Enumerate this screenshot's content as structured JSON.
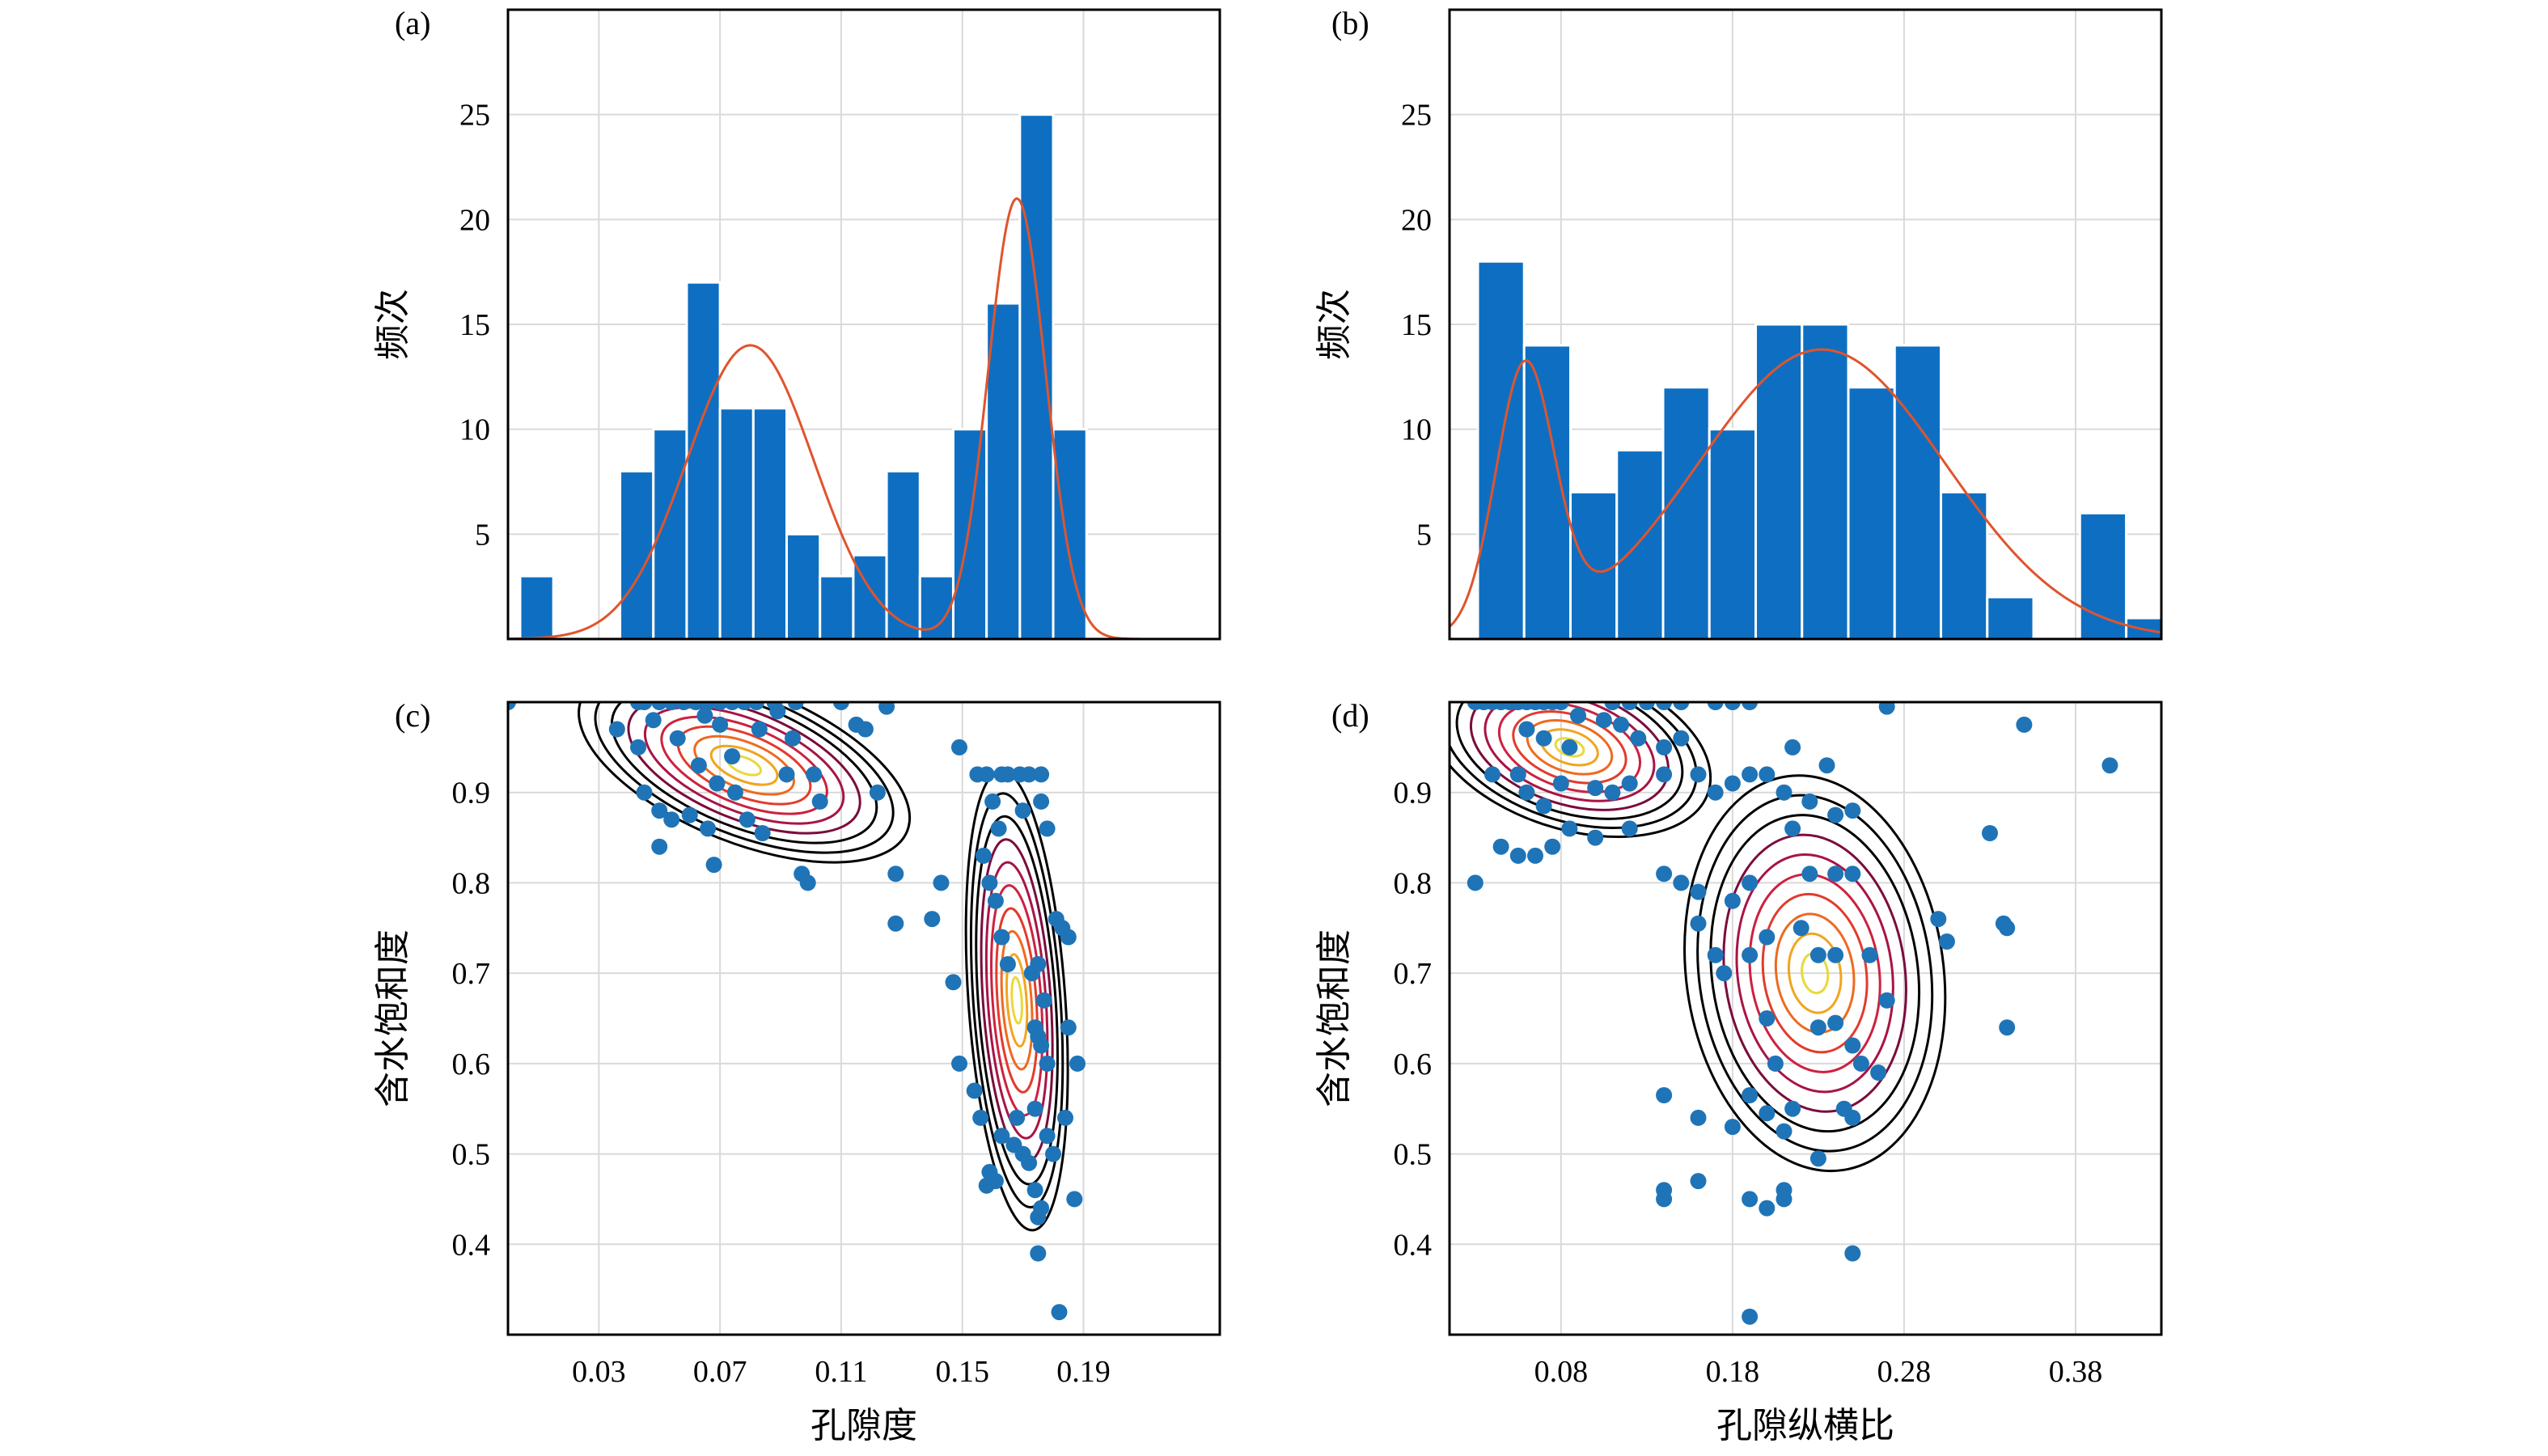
{
  "chart_data": [
    {
      "panel": "(a)",
      "type": "bar",
      "xlabel": "",
      "ylabel": "频次",
      "xlim": [
        0,
        0.235
      ],
      "ylim": [
        0,
        30
      ],
      "xticks": [
        "0.03",
        "0.07",
        "0.11",
        "0.15",
        "0.19"
      ],
      "yticks": [
        "5",
        "10",
        "15",
        "20",
        "25"
      ],
      "bin_width": 0.011,
      "bins": [
        {
          "x": 0.0095,
          "value": 3
        },
        {
          "x": 0.0425,
          "value": 8
        },
        {
          "x": 0.0535,
          "value": 10
        },
        {
          "x": 0.0645,
          "value": 17
        },
        {
          "x": 0.0755,
          "value": 11
        },
        {
          "x": 0.0865,
          "value": 11
        },
        {
          "x": 0.0975,
          "value": 5
        },
        {
          "x": 0.1085,
          "value": 3
        },
        {
          "x": 0.1195,
          "value": 4
        },
        {
          "x": 0.1305,
          "value": 8
        },
        {
          "x": 0.1415,
          "value": 3
        },
        {
          "x": 0.1525,
          "value": 10
        },
        {
          "x": 0.1635,
          "value": 16
        },
        {
          "x": 0.1745,
          "value": 25
        },
        {
          "x": 0.1855,
          "value": 10
        }
      ],
      "fit_curve": {
        "type": "gaussian-mixture",
        "components": [
          {
            "weight": 14.0,
            "mean": 0.08,
            "sd": 0.021
          },
          {
            "weight": 21.0,
            "mean": 0.168,
            "sd": 0.0095
          }
        ]
      }
    },
    {
      "panel": "(b)",
      "type": "bar",
      "xlabel": "",
      "ylabel": "频次",
      "xlim": [
        0.015,
        0.43
      ],
      "ylim": [
        0,
        30
      ],
      "xticks": [
        "0.08",
        "0.18",
        "0.28",
        "0.38"
      ],
      "yticks": [
        "5",
        "10",
        "15",
        "20",
        "25"
      ],
      "bin_width": 0.027,
      "bins": [
        {
          "x": 0.045,
          "value": 18
        },
        {
          "x": 0.072,
          "value": 14
        },
        {
          "x": 0.099,
          "value": 7
        },
        {
          "x": 0.126,
          "value": 9
        },
        {
          "x": 0.153,
          "value": 12
        },
        {
          "x": 0.18,
          "value": 10
        },
        {
          "x": 0.207,
          "value": 15
        },
        {
          "x": 0.234,
          "value": 15
        },
        {
          "x": 0.261,
          "value": 12
        },
        {
          "x": 0.288,
          "value": 14
        },
        {
          "x": 0.315,
          "value": 7
        },
        {
          "x": 0.342,
          "value": 2
        },
        {
          "x": 0.396,
          "value": 6
        },
        {
          "x": 0.423,
          "value": 1
        }
      ],
      "fit_curve": {
        "type": "gaussian-mixture",
        "components": [
          {
            "weight": 12.5,
            "mean": 0.059,
            "sd": 0.017
          },
          {
            "weight": 13.8,
            "mean": 0.232,
            "sd": 0.072
          }
        ]
      }
    },
    {
      "panel": "(c)",
      "type": "scatter",
      "xlabel": "孔隙度",
      "ylabel": "含水饱和度",
      "xlim": [
        0,
        0.235
      ],
      "ylim": [
        0.3,
        1.0
      ],
      "xticks": [
        "0.03",
        "0.07",
        "0.11",
        "0.15",
        "0.19"
      ],
      "yticks": [
        "0.4",
        "0.5",
        "0.6",
        "0.7",
        "0.8",
        "0.9"
      ],
      "contours": {
        "centers": [
          [
            0.078,
            0.93
          ],
          [
            0.168,
            0.67
          ]
        ],
        "levels": 10
      },
      "points": [
        [
          0.0,
          1.0
        ],
        [
          0.043,
          1.0
        ],
        [
          0.045,
          1.0
        ],
        [
          0.05,
          1.0
        ],
        [
          0.054,
          1.0
        ],
        [
          0.058,
          1.0
        ],
        [
          0.062,
          1.0
        ],
        [
          0.066,
          1.0
        ],
        [
          0.07,
          1.0
        ],
        [
          0.074,
          1.0
        ],
        [
          0.078,
          1.0
        ],
        [
          0.082,
          1.0
        ],
        [
          0.088,
          1.0
        ],
        [
          0.095,
          1.0
        ],
        [
          0.11,
          1.0
        ],
        [
          0.125,
          0.995
        ],
        [
          0.036,
          0.97
        ],
        [
          0.043,
          0.95
        ],
        [
          0.048,
          0.98
        ],
        [
          0.056,
          0.96
        ],
        [
          0.065,
          0.985
        ],
        [
          0.07,
          0.975
        ],
        [
          0.074,
          0.94
        ],
        [
          0.083,
          0.97
        ],
        [
          0.089,
          0.99
        ],
        [
          0.094,
          0.96
        ],
        [
          0.115,
          0.975
        ],
        [
          0.118,
          0.97
        ],
        [
          0.045,
          0.9
        ],
        [
          0.05,
          0.88
        ],
        [
          0.054,
          0.87
        ],
        [
          0.06,
          0.875
        ],
        [
          0.063,
          0.93
        ],
        [
          0.066,
          0.86
        ],
        [
          0.069,
          0.91
        ],
        [
          0.075,
          0.9
        ],
        [
          0.079,
          0.87
        ],
        [
          0.084,
          0.855
        ],
        [
          0.092,
          0.92
        ],
        [
          0.101,
          0.92
        ],
        [
          0.103,
          0.89
        ],
        [
          0.05,
          0.84
        ],
        [
          0.068,
          0.82
        ],
        [
          0.097,
          0.81
        ],
        [
          0.099,
          0.8
        ],
        [
          0.122,
          0.9
        ],
        [
          0.128,
          0.81
        ],
        [
          0.128,
          0.755
        ],
        [
          0.14,
          0.76
        ],
        [
          0.143,
          0.8
        ],
        [
          0.147,
          0.69
        ],
        [
          0.149,
          0.6
        ],
        [
          0.149,
          0.95
        ],
        [
          0.155,
          0.92
        ],
        [
          0.158,
          0.92
        ],
        [
          0.163,
          0.92
        ],
        [
          0.165,
          0.92
        ],
        [
          0.169,
          0.92
        ],
        [
          0.172,
          0.92
        ],
        [
          0.176,
          0.92
        ],
        [
          0.16,
          0.89
        ],
        [
          0.162,
          0.86
        ],
        [
          0.17,
          0.88
        ],
        [
          0.176,
          0.89
        ],
        [
          0.178,
          0.86
        ],
        [
          0.183,
          0.75
        ],
        [
          0.181,
          0.76
        ],
        [
          0.185,
          0.74
        ],
        [
          0.157,
          0.83
        ],
        [
          0.159,
          0.8
        ],
        [
          0.161,
          0.78
        ],
        [
          0.163,
          0.74
        ],
        [
          0.165,
          0.71
        ],
        [
          0.173,
          0.7
        ],
        [
          0.175,
          0.71
        ],
        [
          0.177,
          0.67
        ],
        [
          0.174,
          0.64
        ],
        [
          0.175,
          0.63
        ],
        [
          0.176,
          0.62
        ],
        [
          0.178,
          0.6
        ],
        [
          0.185,
          0.64
        ],
        [
          0.188,
          0.6
        ],
        [
          0.154,
          0.57
        ],
        [
          0.156,
          0.54
        ],
        [
          0.159,
          0.48
        ],
        [
          0.161,
          0.47
        ],
        [
          0.163,
          0.52
        ],
        [
          0.167,
          0.51
        ],
        [
          0.168,
          0.54
        ],
        [
          0.17,
          0.5
        ],
        [
          0.172,
          0.49
        ],
        [
          0.174,
          0.55
        ],
        [
          0.178,
          0.52
        ],
        [
          0.18,
          0.5
        ],
        [
          0.184,
          0.54
        ],
        [
          0.187,
          0.45
        ],
        [
          0.174,
          0.46
        ],
        [
          0.175,
          0.43
        ],
        [
          0.176,
          0.44
        ],
        [
          0.175,
          0.39
        ],
        [
          0.182,
          0.325
        ],
        [
          0.158,
          0.465
        ]
      ]
    },
    {
      "panel": "(d)",
      "type": "scatter",
      "xlabel": "孔隙纵横比",
      "ylabel": "含水饱和度",
      "xlim": [
        0.015,
        0.43
      ],
      "ylim": [
        0.3,
        1.0
      ],
      "xticks": [
        "0.08",
        "0.18",
        "0.28",
        "0.38"
      ],
      "yticks": [
        "0.4",
        "0.5",
        "0.6",
        "0.7",
        "0.8",
        "0.9"
      ],
      "contours": {
        "centers": [
          [
            0.085,
            0.95
          ],
          [
            0.235,
            0.71
          ]
        ],
        "levels": 10
      },
      "points": [
        [
          0.03,
          1.0
        ],
        [
          0.035,
          1.0
        ],
        [
          0.04,
          1.0
        ],
        [
          0.045,
          1.0
        ],
        [
          0.05,
          1.0
        ],
        [
          0.055,
          1.0
        ],
        [
          0.06,
          1.0
        ],
        [
          0.065,
          1.0
        ],
        [
          0.07,
          1.0
        ],
        [
          0.075,
          1.0
        ],
        [
          0.08,
          1.0
        ],
        [
          0.11,
          1.0
        ],
        [
          0.12,
          1.0
        ],
        [
          0.13,
          1.0
        ],
        [
          0.14,
          1.0
        ],
        [
          0.15,
          1.0
        ],
        [
          0.17,
          1.0
        ],
        [
          0.18,
          1.0
        ],
        [
          0.19,
          1.0
        ],
        [
          0.06,
          0.97
        ],
        [
          0.07,
          0.96
        ],
        [
          0.085,
          0.95
        ],
        [
          0.09,
          0.985
        ],
        [
          0.105,
          0.98
        ],
        [
          0.115,
          0.975
        ],
        [
          0.125,
          0.96
        ],
        [
          0.14,
          0.95
        ],
        [
          0.15,
          0.96
        ],
        [
          0.215,
          0.95
        ],
        [
          0.235,
          0.93
        ],
        [
          0.27,
          0.995
        ],
        [
          0.04,
          0.92
        ],
        [
          0.055,
          0.92
        ],
        [
          0.06,
          0.9
        ],
        [
          0.07,
          0.885
        ],
        [
          0.08,
          0.91
        ],
        [
          0.1,
          0.905
        ],
        [
          0.11,
          0.9
        ],
        [
          0.12,
          0.91
        ],
        [
          0.14,
          0.92
        ],
        [
          0.16,
          0.92
        ],
        [
          0.17,
          0.9
        ],
        [
          0.18,
          0.91
        ],
        [
          0.19,
          0.92
        ],
        [
          0.2,
          0.92
        ],
        [
          0.21,
          0.9
        ],
        [
          0.225,
          0.89
        ],
        [
          0.24,
          0.875
        ],
        [
          0.25,
          0.88
        ],
        [
          0.045,
          0.84
        ],
        [
          0.055,
          0.83
        ],
        [
          0.065,
          0.83
        ],
        [
          0.075,
          0.84
        ],
        [
          0.085,
          0.86
        ],
        [
          0.1,
          0.85
        ],
        [
          0.12,
          0.86
        ],
        [
          0.14,
          0.81
        ],
        [
          0.15,
          0.8
        ],
        [
          0.16,
          0.79
        ],
        [
          0.18,
          0.78
        ],
        [
          0.03,
          0.8
        ],
        [
          0.19,
          0.8
        ],
        [
          0.215,
          0.86
        ],
        [
          0.225,
          0.81
        ],
        [
          0.24,
          0.81
        ],
        [
          0.25,
          0.81
        ],
        [
          0.26,
          0.72
        ],
        [
          0.16,
          0.755
        ],
        [
          0.17,
          0.72
        ],
        [
          0.175,
          0.7
        ],
        [
          0.19,
          0.72
        ],
        [
          0.2,
          0.74
        ],
        [
          0.22,
          0.75
        ],
        [
          0.23,
          0.72
        ],
        [
          0.24,
          0.72
        ],
        [
          0.27,
          0.67
        ],
        [
          0.3,
          0.76
        ],
        [
          0.305,
          0.735
        ],
        [
          0.33,
          0.855
        ],
        [
          0.338,
          0.755
        ],
        [
          0.34,
          0.75
        ],
        [
          0.2,
          0.65
        ],
        [
          0.205,
          0.6
        ],
        [
          0.23,
          0.64
        ],
        [
          0.24,
          0.645
        ],
        [
          0.25,
          0.62
        ],
        [
          0.255,
          0.6
        ],
        [
          0.265,
          0.59
        ],
        [
          0.34,
          0.64
        ],
        [
          0.35,
          0.975
        ],
        [
          0.4,
          0.93
        ],
        [
          0.14,
          0.565
        ],
        [
          0.16,
          0.54
        ],
        [
          0.18,
          0.53
        ],
        [
          0.19,
          0.565
        ],
        [
          0.2,
          0.545
        ],
        [
          0.21,
          0.525
        ],
        [
          0.215,
          0.55
        ],
        [
          0.245,
          0.55
        ],
        [
          0.25,
          0.54
        ],
        [
          0.23,
          0.495
        ],
        [
          0.14,
          0.46
        ],
        [
          0.14,
          0.45
        ],
        [
          0.16,
          0.47
        ],
        [
          0.19,
          0.45
        ],
        [
          0.2,
          0.44
        ],
        [
          0.21,
          0.46
        ],
        [
          0.21,
          0.45
        ],
        [
          0.25,
          0.39
        ],
        [
          0.19,
          0.32
        ]
      ]
    }
  ]
}
